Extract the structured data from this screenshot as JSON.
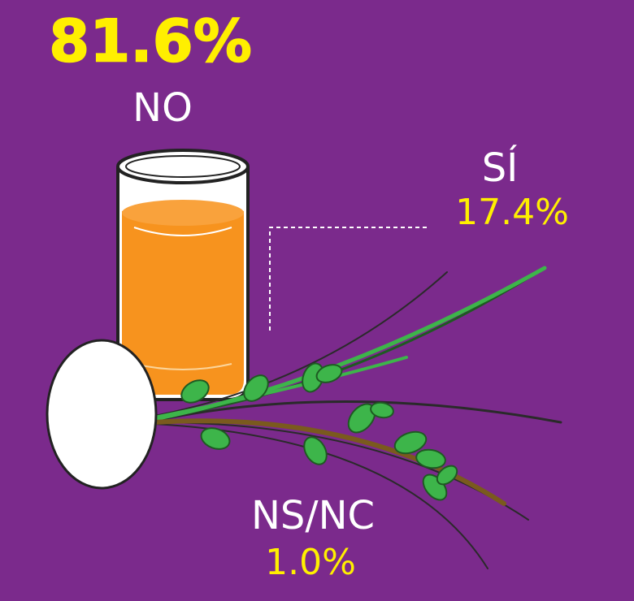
{
  "results": [
    {
      "label": "NO",
      "value": "81.6%"
    },
    {
      "label": "SÍ",
      "value": "17.4%"
    },
    {
      "label": "NS/NC",
      "value": "1.0%"
    }
  ]
}
